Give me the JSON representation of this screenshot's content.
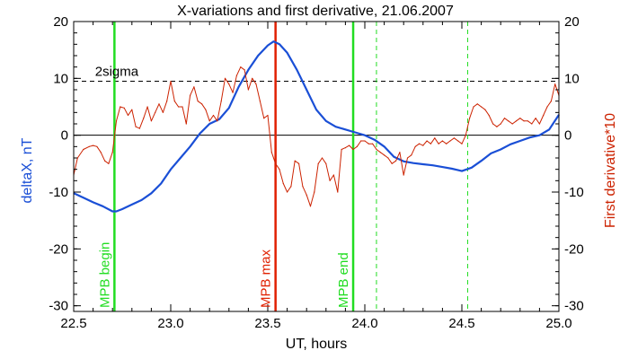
{
  "chart_data": {
    "type": "line",
    "title": "X-variations and first derivative, 21.06.2007",
    "xlabel": "UT, hours",
    "ylabel_left": "deltaX, nT",
    "ylabel_right": "First derivative*10",
    "xlim": [
      22.5,
      25.0
    ],
    "ylim": [
      -31,
      20
    ],
    "x_ticks": [
      "22.5",
      "23.0",
      "23.5",
      "24.0",
      "24.5",
      "25.0"
    ],
    "y_ticks": [
      "20",
      "10",
      "0",
      "-10",
      "-20",
      "-30"
    ],
    "colors": {
      "deltaX": "#1a4fd6",
      "derivative": "#cc2200",
      "green": "#22dd22",
      "red_marker": "#e02000"
    },
    "reference_lines": [
      {
        "label": "2sigma",
        "y": 9.5,
        "style": "dashed"
      },
      {
        "label": "",
        "y": 0,
        "style": "solid"
      }
    ],
    "vertical_markers": [
      {
        "label": "MPB begin",
        "x": 22.71,
        "color": "#22dd22",
        "style": "solid"
      },
      {
        "label": "MPB max",
        "x": 23.54,
        "color": "#e02000",
        "style": "solid"
      },
      {
        "label": "MPB end",
        "x": 23.94,
        "color": "#22dd22",
        "style": "solid"
      },
      {
        "label": "",
        "x": 24.06,
        "color": "#22dd22",
        "style": "dashed"
      },
      {
        "label": "",
        "x": 24.53,
        "color": "#22dd22",
        "style": "dashed"
      }
    ],
    "series": [
      {
        "key": "deltaX",
        "name": "deltaX, nT",
        "x": [
          22.5,
          22.55,
          22.6,
          22.65,
          22.7,
          22.72,
          22.75,
          22.8,
          22.85,
          22.9,
          22.95,
          23.0,
          23.05,
          23.1,
          23.15,
          23.2,
          23.25,
          23.3,
          23.35,
          23.4,
          23.45,
          23.5,
          23.53,
          23.56,
          23.6,
          23.65,
          23.7,
          23.75,
          23.8,
          23.85,
          23.9,
          23.95,
          24.0,
          24.05,
          24.1,
          24.15,
          24.2,
          24.25,
          24.3,
          24.35,
          24.4,
          24.45,
          24.5,
          24.55,
          24.6,
          24.65,
          24.7,
          24.75,
          24.8,
          24.85,
          24.9,
          24.95,
          25.0
        ],
        "y": [
          -10.2,
          -11.0,
          -11.8,
          -12.5,
          -13.4,
          -13.4,
          -13.0,
          -12.2,
          -11.4,
          -10.2,
          -8.5,
          -6.0,
          -4.0,
          -2.0,
          0.3,
          2.0,
          2.8,
          4.8,
          8.5,
          11.5,
          14.0,
          15.8,
          16.5,
          16.0,
          14.5,
          11.5,
          8.0,
          4.5,
          2.5,
          1.5,
          1.0,
          0.5,
          0.0,
          -0.8,
          -2.0,
          -3.8,
          -4.6,
          -4.9,
          -5.1,
          -5.3,
          -5.6,
          -5.9,
          -6.3,
          -5.7,
          -4.5,
          -3.2,
          -2.5,
          -1.6,
          -1.0,
          -0.4,
          0.0,
          1.0,
          3.6
        ]
      },
      {
        "key": "derivative",
        "name": "First derivative*10",
        "x": [
          22.5,
          22.52,
          22.55,
          22.58,
          22.6,
          22.62,
          22.64,
          22.66,
          22.68,
          22.7,
          22.72,
          22.74,
          22.76,
          22.78,
          22.8,
          22.82,
          22.84,
          22.86,
          22.88,
          22.9,
          22.92,
          22.94,
          22.96,
          22.98,
          23.0,
          23.02,
          23.04,
          23.06,
          23.08,
          23.1,
          23.12,
          23.14,
          23.16,
          23.18,
          23.2,
          23.22,
          23.24,
          23.26,
          23.28,
          23.3,
          23.32,
          23.34,
          23.36,
          23.38,
          23.4,
          23.42,
          23.44,
          23.46,
          23.48,
          23.5,
          23.52,
          23.54,
          23.56,
          23.58,
          23.6,
          23.62,
          23.64,
          23.66,
          23.68,
          23.7,
          23.72,
          23.74,
          23.76,
          23.78,
          23.8,
          23.82,
          23.84,
          23.86,
          23.88,
          23.9,
          23.92,
          23.94,
          23.96,
          23.98,
          24.0,
          24.02,
          24.04,
          24.06,
          24.08,
          24.1,
          24.12,
          24.14,
          24.16,
          24.18,
          24.2,
          24.22,
          24.24,
          24.26,
          24.28,
          24.3,
          24.32,
          24.34,
          24.36,
          24.38,
          24.4,
          24.42,
          24.44,
          24.46,
          24.48,
          24.5,
          24.52,
          24.54,
          24.56,
          24.58,
          24.6,
          24.62,
          24.64,
          24.66,
          24.68,
          24.7,
          24.72,
          24.74,
          24.76,
          24.78,
          24.8,
          24.82,
          24.84,
          24.86,
          24.88,
          24.9,
          24.92,
          24.94,
          24.96,
          24.98,
          25.0
        ],
        "y": [
          -7.0,
          -4.0,
          -2.5,
          -2.0,
          -1.8,
          -2.0,
          -3.0,
          -4.5,
          -5.0,
          -3.0,
          2.5,
          5.0,
          4.8,
          3.5,
          4.5,
          1.5,
          1.2,
          3.0,
          5.0,
          2.5,
          4.0,
          5.5,
          4.0,
          6.0,
          9.5,
          6.0,
          5.0,
          5.0,
          2.0,
          7.0,
          8.5,
          6.0,
          5.5,
          4.5,
          2.5,
          3.5,
          2.5,
          6.0,
          10.0,
          9.0,
          7.5,
          10.5,
          12.0,
          11.5,
          8.0,
          10.0,
          9.0,
          6.0,
          3.0,
          3.5,
          -3.0,
          -5.0,
          -6.0,
          -8.5,
          -10.0,
          -9.0,
          -4.5,
          -5.0,
          -9.0,
          -10.5,
          -12.5,
          -10.0,
          -5.0,
          -4.0,
          -5.0,
          -8.0,
          -7.0,
          -10.0,
          -2.5,
          -2.2,
          -1.8,
          -2.5,
          -2.0,
          -1.0,
          -1.0,
          -1.5,
          -1.5,
          -2.5,
          -3.0,
          -3.5,
          -4.0,
          -5.0,
          -4.5,
          -3.0,
          -7.0,
          -4.0,
          -3.5,
          -2.0,
          -1.5,
          -1.8,
          -1.0,
          -1.5,
          -0.5,
          -1.5,
          -1.0,
          -1.5,
          -1.0,
          -0.5,
          -1.0,
          -1.5,
          0.0,
          3.0,
          5.0,
          5.5,
          5.0,
          4.5,
          3.5,
          2.0,
          1.5,
          2.0,
          3.0,
          2.5,
          2.0,
          2.5,
          3.0,
          2.5,
          2.5,
          2.0,
          3.0,
          2.0,
          3.5,
          5.0,
          6.0,
          9.0,
          7.0
        ]
      }
    ]
  }
}
